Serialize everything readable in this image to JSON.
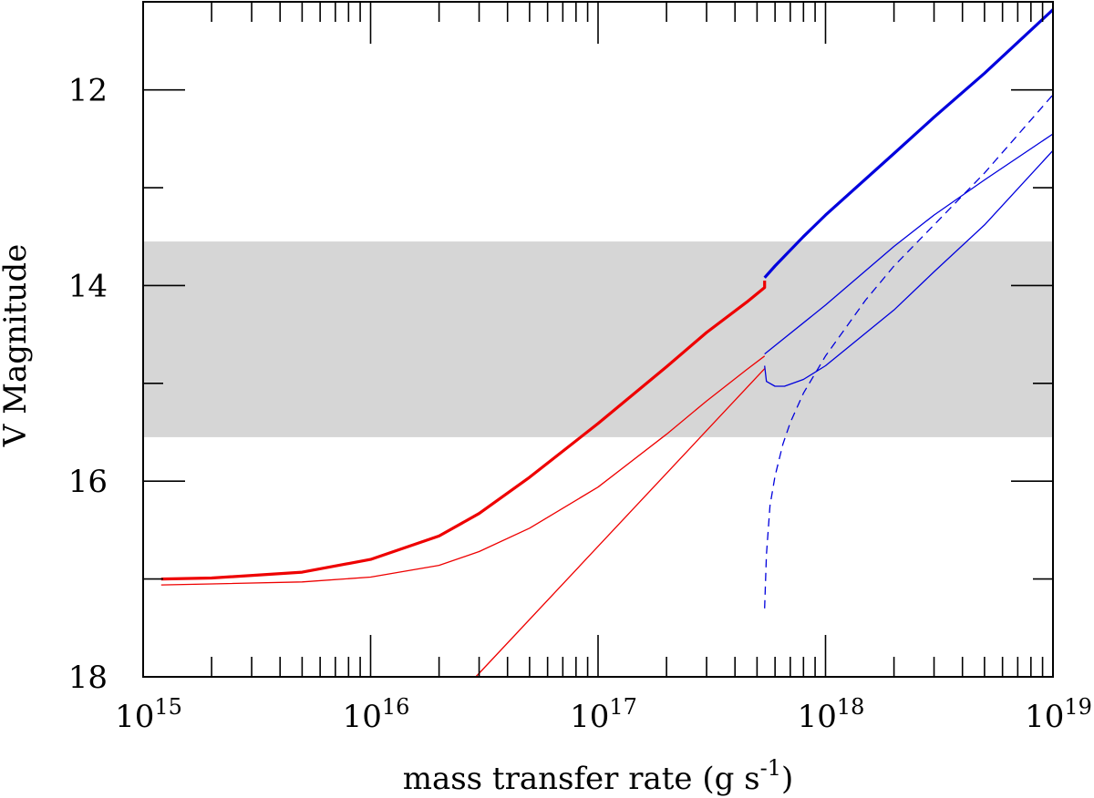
{
  "chart_data": {
    "type": "line",
    "xlabel": "mass transfer rate (g s",
    "xlabel_sup": "-1",
    "xlabel_end": ")",
    "ylabel": "V Magnitude",
    "x_scale": "log",
    "xlim": [
      1000000000000000.0,
      1e+19
    ],
    "ylim": [
      18,
      11.1
    ],
    "y_inverted": true,
    "x_ticks": [
      {
        "base": "10",
        "exp": "15"
      },
      {
        "base": "10",
        "exp": "16"
      },
      {
        "base": "10",
        "exp": "17"
      },
      {
        "base": "10",
        "exp": "18"
      },
      {
        "base": "10",
        "exp": "19"
      }
    ],
    "y_ticks": [
      "12",
      "14",
      "16",
      "18"
    ],
    "y_tick_values": [
      12,
      14,
      16,
      18
    ],
    "y_minor_ticks": [
      13,
      15,
      17
    ],
    "shaded_band": {
      "y_range": [
        13.55,
        15.55
      ],
      "color": "#d6d6d6"
    },
    "colors": {
      "red": "#ee0000",
      "blue": "#0000dd",
      "frame": "#000000"
    },
    "series": [
      {
        "color": "red",
        "style": "solid",
        "width": "thick",
        "x": [
          1200000000000000.0,
          2000000000000000.0,
          5000000000000000.0,
          1e+16,
          2e+16,
          3e+16,
          5e+16,
          1e+17,
          2e+17,
          3e+17,
          4.5e+17,
          5.4e+17,
          5.4e+17
        ],
        "y": [
          17.0,
          16.99,
          16.93,
          16.8,
          16.56,
          16.33,
          15.96,
          15.41,
          14.83,
          14.48,
          14.17,
          14.02,
          13.95
        ]
      },
      {
        "color": "red",
        "style": "solid",
        "width": "thin",
        "x": [
          1200000000000000.0,
          2000000000000000.0,
          5000000000000000.0,
          1e+16,
          2e+16,
          3e+16,
          5e+16,
          1e+17,
          2e+17,
          3e+17,
          4.5e+17,
          5.4e+17
        ],
        "y": [
          17.06,
          17.05,
          17.03,
          16.98,
          16.86,
          16.72,
          16.48,
          16.06,
          15.52,
          15.18,
          14.86,
          14.72
        ]
      },
      {
        "color": "red",
        "style": "solid",
        "width": "thin",
        "x": [
          2.9e+16,
          5.4e+17
        ],
        "y": [
          18.0,
          14.85
        ]
      },
      {
        "color": "blue",
        "style": "solid",
        "width": "thick",
        "x": [
          5.4e+17,
          6e+17,
          8e+17,
          1e+18,
          2e+18,
          3e+18,
          5e+18,
          1e+19
        ],
        "y": [
          13.92,
          13.8,
          13.5,
          13.28,
          12.65,
          12.28,
          11.83,
          11.18
        ]
      },
      {
        "color": "blue",
        "style": "solid",
        "width": "thin",
        "x": [
          5.4e+17,
          1e+18,
          2e+18,
          3e+18,
          5e+18,
          1e+19
        ],
        "y": [
          14.7,
          14.2,
          13.6,
          13.28,
          12.92,
          12.45
        ]
      },
      {
        "color": "blue",
        "style": "solid",
        "width": "thin",
        "x": [
          5.4e+17,
          5.5e+17,
          6e+17,
          6.6e+17,
          8e+17,
          1e+18,
          2e+18,
          3e+18,
          5e+18,
          1e+19
        ],
        "y": [
          14.82,
          14.98,
          15.03,
          15.03,
          14.96,
          14.82,
          14.25,
          13.86,
          13.38,
          12.62
        ]
      },
      {
        "color": "blue",
        "style": "dashed",
        "width": "thin",
        "x": [
          5.4e+17,
          5.5e+17,
          5.7e+17,
          6e+17,
          6.5e+17,
          7e+17,
          8e+17,
          1e+18,
          1.5e+18,
          2e+18,
          3e+18,
          5e+18,
          1e+19
        ],
        "y": [
          17.3,
          16.75,
          16.25,
          15.95,
          15.62,
          15.4,
          15.1,
          14.72,
          14.15,
          13.8,
          13.38,
          12.85,
          12.05
        ]
      }
    ]
  }
}
